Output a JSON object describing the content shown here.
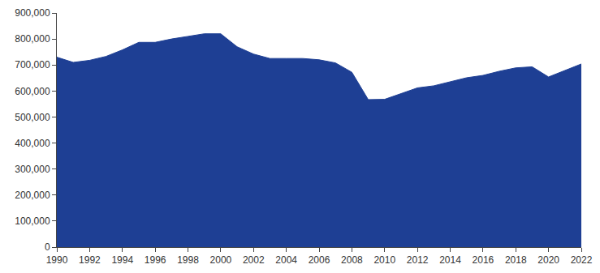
{
  "chart_data": {
    "type": "area",
    "x": [
      1990,
      1991,
      1992,
      1993,
      1994,
      1995,
      1996,
      1997,
      1998,
      1999,
      2000,
      2001,
      2002,
      2003,
      2004,
      2005,
      2006,
      2007,
      2008,
      2009,
      2010,
      2011,
      2012,
      2013,
      2014,
      2015,
      2016,
      2017,
      2018,
      2019,
      2020,
      2021,
      2022
    ],
    "values": [
      730000,
      710000,
      718000,
      733000,
      758000,
      787000,
      787000,
      800000,
      810000,
      820000,
      820000,
      770000,
      742000,
      725000,
      725000,
      725000,
      720000,
      708000,
      672000,
      567000,
      568000,
      590000,
      612000,
      620000,
      636000,
      651000,
      660000,
      676000,
      689000,
      693000,
      654000,
      680000,
      704000
    ],
    "color": "#1e3f94",
    "xlim": [
      1990,
      2022
    ],
    "xticks": [
      1990,
      1992,
      1994,
      1996,
      1998,
      2000,
      2002,
      2004,
      2006,
      2008,
      2010,
      2012,
      2014,
      2016,
      2018,
      2020,
      2022
    ],
    "ylim": [
      0,
      900000
    ],
    "yticks": [
      0,
      {
        "value": 100000,
        "label": "100,000"
      },
      {
        "value": 200000,
        "label": "200,000"
      },
      {
        "value": 300000,
        "label": "300,000"
      },
      {
        "value": 400000,
        "label": "400,000"
      },
      {
        "value": 500000,
        "label": "500,000"
      },
      {
        "value": 600000,
        "label": "600,000"
      },
      {
        "value": 700000,
        "label": "700,000"
      },
      {
        "value": 800000,
        "label": "800,000"
      },
      {
        "value": 900000,
        "label": "900,000"
      }
    ],
    "grid": false
  }
}
